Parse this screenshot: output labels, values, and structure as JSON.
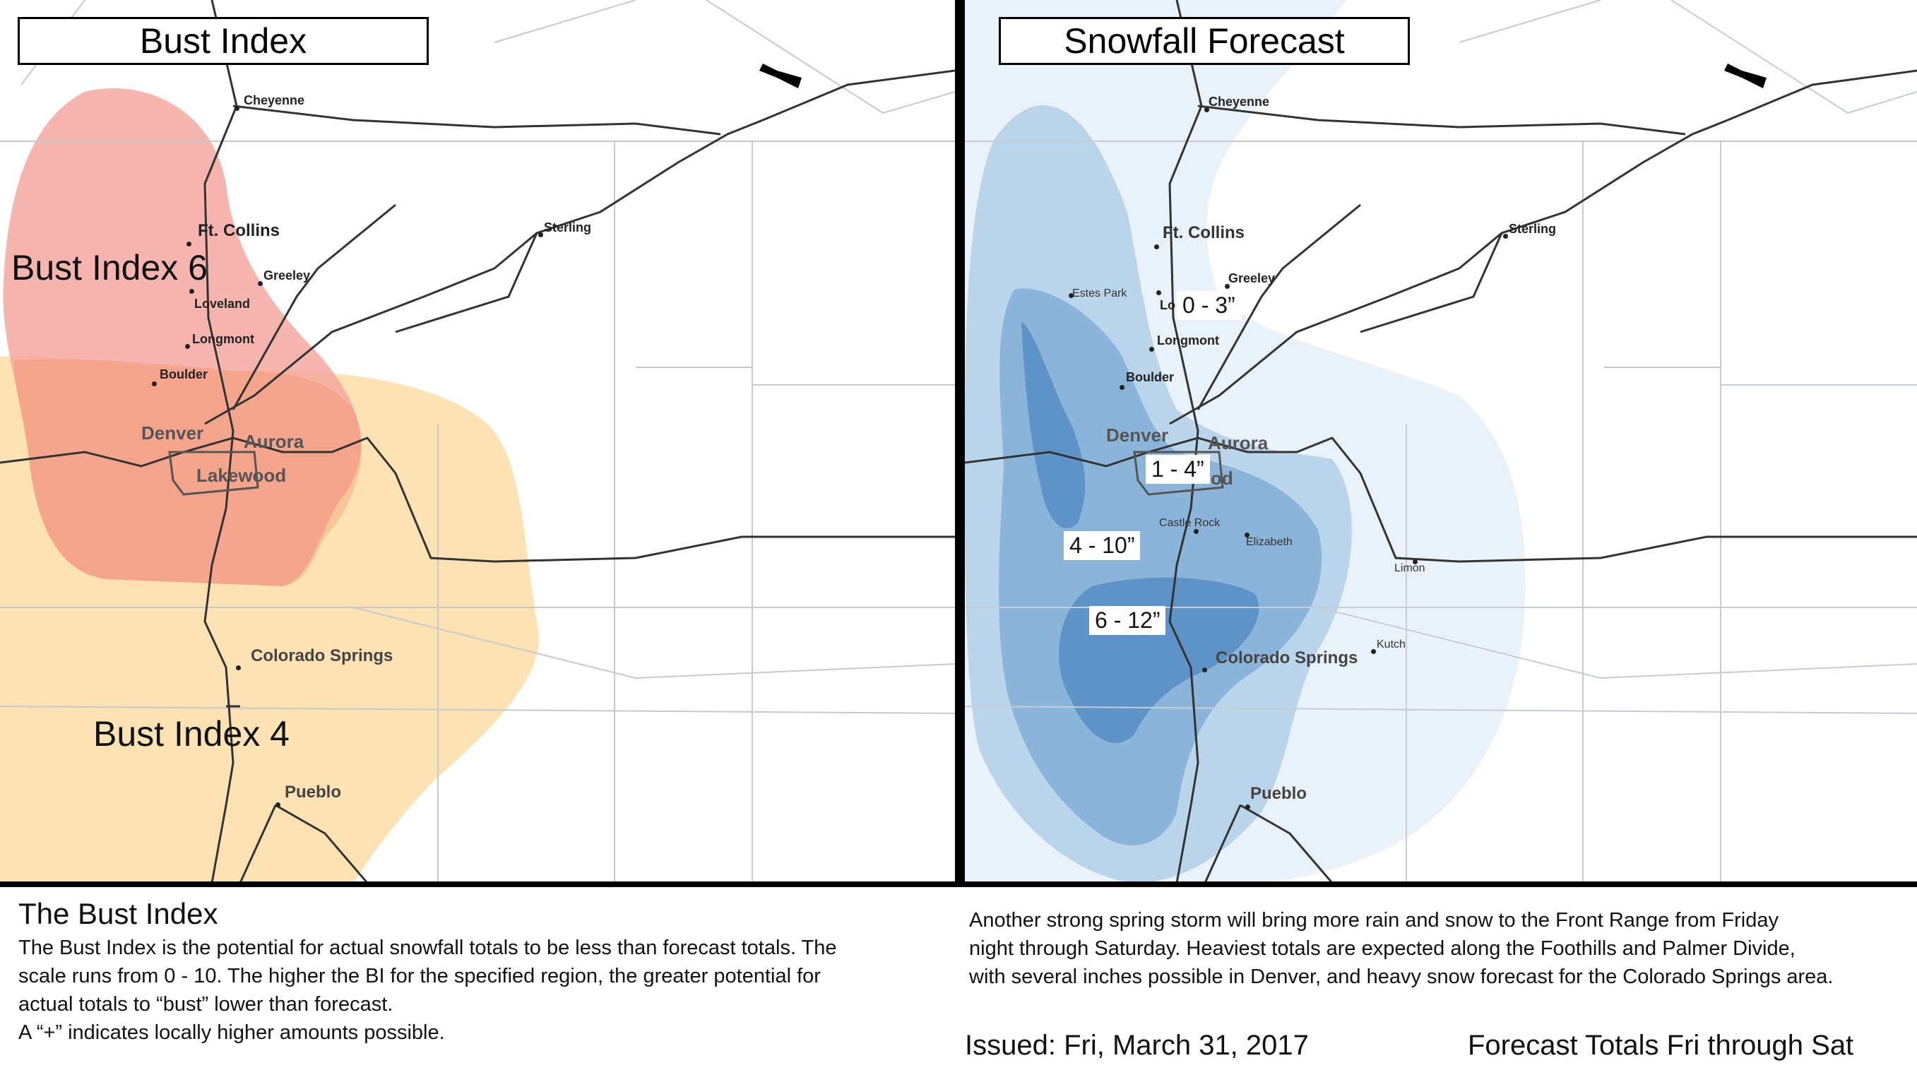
{
  "left_panel": {
    "title": "Bust Index",
    "regions": [
      "Bust Index 6",
      "Bust Index 4"
    ],
    "cities": {
      "cheyenne": "Cheyenne",
      "ft_collins": "Ft. Collins",
      "greeley": "Greeley",
      "loveland": "Loveland",
      "longmont": "Longmont",
      "boulder": "Boulder",
      "denver": "Denver",
      "aurora": "Aurora",
      "lakewood": "Lakewood",
      "sterling": "Sterling",
      "colorado_springs": "Colorado Springs",
      "pueblo": "Pueblo"
    },
    "colors": {
      "bust_index_6": "#f4a8a0",
      "bust_index_4": "#fde3b4"
    }
  },
  "right_panel": {
    "title": "Snowfall Forecast",
    "ranges": [
      "0 - 3”",
      "1 - 4”",
      "4 - 10”",
      "6 - 12”"
    ],
    "cities": {
      "cheyenne": "Cheyenne",
      "ft_collins": "Ft. Collins",
      "greeley": "Greeley",
      "estes_park": "Estes Park",
      "lo": "Lo",
      "longmont": "Longmont",
      "boulder": "Boulder",
      "denver": "Denver",
      "aurora": "Aurora",
      "od": "od",
      "castle_rock": "Castle Rock",
      "elizabeth": "Elizabeth",
      "sterling": "Sterling",
      "limon": "Limon",
      "kutch": "Kutch",
      "colorado_springs": "Colorado Springs",
      "pueblo": "Pueblo"
    },
    "colors": {
      "light": "#e9f1f9",
      "mid": "#bad4ea",
      "dark": "#8ab4da",
      "darkest": "#5d93c6"
    }
  },
  "footer": {
    "heading": "The Bust Index",
    "bust_description": [
      "The Bust Index is the potential for actual snowfall totals to be less than forecast totals. The",
      "scale runs from 0 - 10. The higher the BI for the specified region, the greater potential for",
      "actual totals to “bust” lower than forecast.",
      "A “+” indicates locally higher amounts possible."
    ],
    "storm_description": [
      "Another strong spring storm will bring more rain and snow to the Front Range from Friday",
      "night through Saturday. Heaviest totals are expected along the Foothills and Palmer Divide,",
      "with several inches possible in Denver, and heavy snow forecast for the Colorado Springs area."
    ],
    "issued": "Issued: Fri, March 31, 2017",
    "forecast_period": "Forecast Totals Fri through Sat"
  }
}
